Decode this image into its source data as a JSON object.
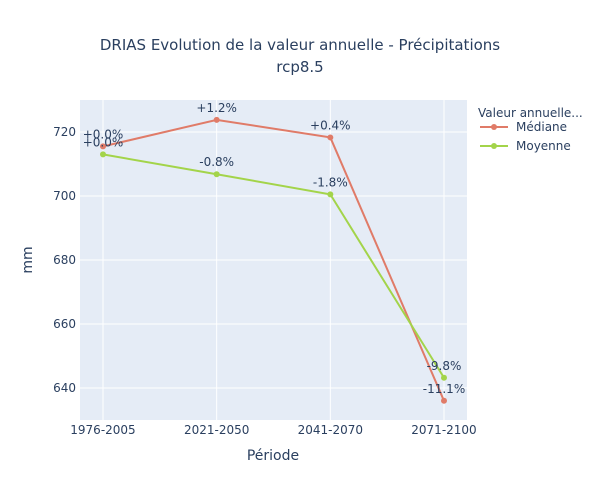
{
  "chart_data": {
    "type": "line",
    "title_line1": "DRIAS Evolution de la valeur annuelle - Précipitations",
    "title_line2": "rcp8.5",
    "xlabel": "Période",
    "ylabel": "mm",
    "categories": [
      "1976-2005",
      "2021-2050",
      "2041-2070",
      "2071-2100"
    ],
    "ylim": [
      630,
      730
    ],
    "yticks": [
      640,
      660,
      680,
      700,
      720
    ],
    "grid": true,
    "legend_title": "Valeur annuelle...",
    "legend_position": "top-right",
    "series": [
      {
        "name": "Médiane",
        "color": "#e07b68",
        "values": [
          715.5,
          723.8,
          718.3,
          636
        ],
        "labels": [
          "+0.0%",
          "+1.2%",
          "+0.4%",
          "-11.1%"
        ]
      },
      {
        "name": "Moyenne",
        "color": "#a3d44a",
        "values": [
          713,
          706.8,
          700.5,
          643.2
        ],
        "labels": [
          "+0.0%",
          "-0.8%",
          "-1.8%",
          "-9.8%"
        ]
      }
    ]
  }
}
